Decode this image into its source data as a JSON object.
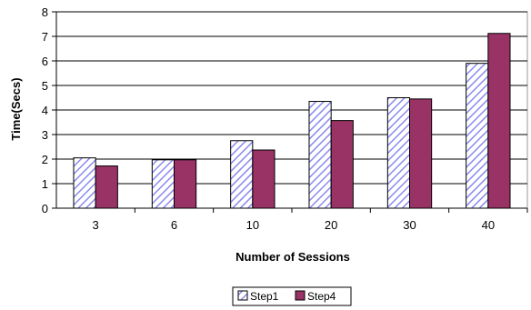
{
  "chart_data": {
    "type": "bar",
    "categories": [
      "3",
      "6",
      "10",
      "20",
      "30",
      "40"
    ],
    "series": [
      {
        "name": "Step1",
        "values": [
          2.05,
          1.97,
          2.75,
          4.35,
          4.5,
          5.9
        ],
        "pattern": "diagonal-hatch",
        "color": "#9999ff"
      },
      {
        "name": "Step4",
        "values": [
          1.72,
          1.97,
          2.37,
          3.57,
          4.45,
          7.12
        ],
        "pattern": "solid",
        "color": "#993366"
      }
    ],
    "title": "",
    "xlabel": "Number of Sessions",
    "ylabel": "Time(Secs)",
    "ylim": [
      0,
      8
    ],
    "yticks": [
      "0",
      "1",
      "2",
      "3",
      "4",
      "5",
      "6",
      "7",
      "8"
    ],
    "grid": "horizontal",
    "legend": "bottom-center"
  }
}
